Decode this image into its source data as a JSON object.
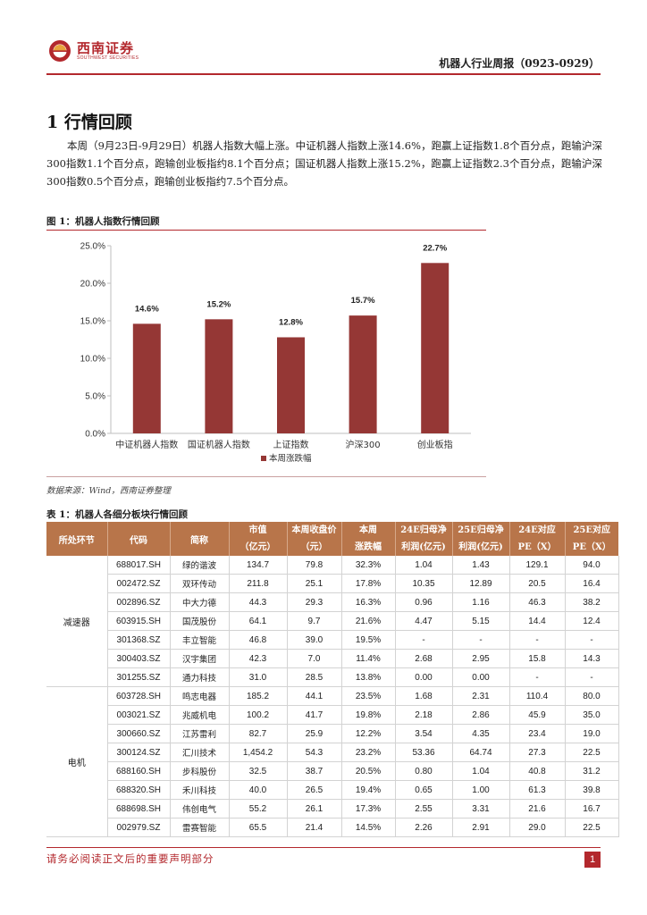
{
  "header": {
    "logo_cn": "西南证券",
    "logo_en": "SOUTHWEST SECURITIES",
    "report_title": "机器人行业周报（0923-0929）"
  },
  "section": {
    "heading": "1 行情回顾",
    "paragraph": "本周（9月23日-9月29日）机器人指数大幅上涨。中证机器人指数上涨14.6%，跑赢上证指数1.8个百分点，跑输沪深300指数1.1个百分点，跑输创业板指约8.1个百分点；国证机器人指数上涨15.2%，跑赢上证指数2.3个百分点，跑输沪深300指数0.5个百分点，跑输创业板指约7.5个百分点。"
  },
  "figure": {
    "title": "图 1：机器人指数行情回顾",
    "source": "数据来源：Wind，西南证券整理"
  },
  "chart_data": {
    "type": "bar",
    "categories": [
      "中证机器人指数",
      "国证机器人指数",
      "上证指数",
      "沪深300",
      "创业板指"
    ],
    "series": [
      {
        "name": "本周涨跌幅",
        "values": [
          14.6,
          15.2,
          12.8,
          15.7,
          22.7
        ],
        "color": "#953735"
      }
    ],
    "data_labels": [
      "14.6%",
      "15.2%",
      "12.8%",
      "15.7%",
      "22.7%"
    ],
    "y_ticks": [
      "0.0%",
      "5.0%",
      "10.0%",
      "15.0%",
      "20.0%",
      "25.0%"
    ],
    "ylim": [
      0,
      25
    ],
    "grid": false,
    "legend_position": "bottom"
  },
  "table": {
    "title": "表 1：机器人各细分板块行情回顾",
    "headers": [
      [
        "所处环节"
      ],
      [
        "代码"
      ],
      [
        "简称"
      ],
      [
        "市值",
        "（亿元）"
      ],
      [
        "本周收盘价",
        "（元）"
      ],
      [
        "本周",
        "涨跌幅"
      ],
      [
        "24E归母净",
        "利润(亿元)"
      ],
      [
        "25E归母净",
        "利润(亿元)"
      ],
      [
        "24E对应",
        "PE（X）"
      ],
      [
        "25E对应",
        "PE（X）"
      ]
    ],
    "groups": [
      {
        "name": "减速器",
        "rows": [
          [
            "688017.SH",
            "绿的谐波",
            "134.7",
            "79.8",
            "32.3%",
            "1.04",
            "1.43",
            "129.1",
            "94.0"
          ],
          [
            "002472.SZ",
            "双环传动",
            "211.8",
            "25.1",
            "17.8%",
            "10.35",
            "12.89",
            "20.5",
            "16.4"
          ],
          [
            "002896.SZ",
            "中大力德",
            "44.3",
            "29.3",
            "16.3%",
            "0.96",
            "1.16",
            "46.3",
            "38.2"
          ],
          [
            "603915.SH",
            "国茂股份",
            "64.1",
            "9.7",
            "21.6%",
            "4.47",
            "5.15",
            "14.4",
            "12.4"
          ],
          [
            "301368.SZ",
            "丰立智能",
            "46.8",
            "39.0",
            "19.5%",
            "-",
            "-",
            "-",
            "-"
          ],
          [
            "300403.SZ",
            "汉宇集团",
            "42.3",
            "7.0",
            "11.4%",
            "2.68",
            "2.95",
            "15.8",
            "14.3"
          ],
          [
            "301255.SZ",
            "通力科技",
            "31.0",
            "28.5",
            "13.8%",
            "0.00",
            "0.00",
            "-",
            "-"
          ]
        ]
      },
      {
        "name": "电机",
        "rows": [
          [
            "603728.SH",
            "鸣志电器",
            "185.2",
            "44.1",
            "23.5%",
            "1.68",
            "2.31",
            "110.4",
            "80.0"
          ],
          [
            "003021.SZ",
            "兆威机电",
            "100.2",
            "41.7",
            "19.8%",
            "2.18",
            "2.86",
            "45.9",
            "35.0"
          ],
          [
            "300660.SZ",
            "江苏雷利",
            "82.7",
            "25.9",
            "12.2%",
            "3.54",
            "4.35",
            "23.4",
            "19.0"
          ],
          [
            "300124.SZ",
            "汇川技术",
            "1,454.2",
            "54.3",
            "23.2%",
            "53.36",
            "64.74",
            "27.3",
            "22.5"
          ],
          [
            "688160.SH",
            "步科股份",
            "32.5",
            "38.7",
            "20.5%",
            "0.80",
            "1.04",
            "40.8",
            "31.2"
          ],
          [
            "688320.SH",
            "禾川科技",
            "40.0",
            "26.5",
            "19.4%",
            "0.65",
            "1.00",
            "61.3",
            "39.8"
          ],
          [
            "688698.SH",
            "伟创电气",
            "55.2",
            "26.1",
            "17.3%",
            "2.55",
            "3.31",
            "21.6",
            "16.7"
          ],
          [
            "002979.SZ",
            "雷赛智能",
            "65.5",
            "21.4",
            "14.5%",
            "2.26",
            "2.91",
            "29.0",
            "22.5"
          ]
        ]
      }
    ]
  },
  "footer": {
    "disclaimer": "请务必阅读正文后的重要声明部分",
    "page": "1"
  },
  "colors": {
    "brand_red": "#b3282d",
    "bar": "#953735",
    "table_header": "#b8754a"
  }
}
